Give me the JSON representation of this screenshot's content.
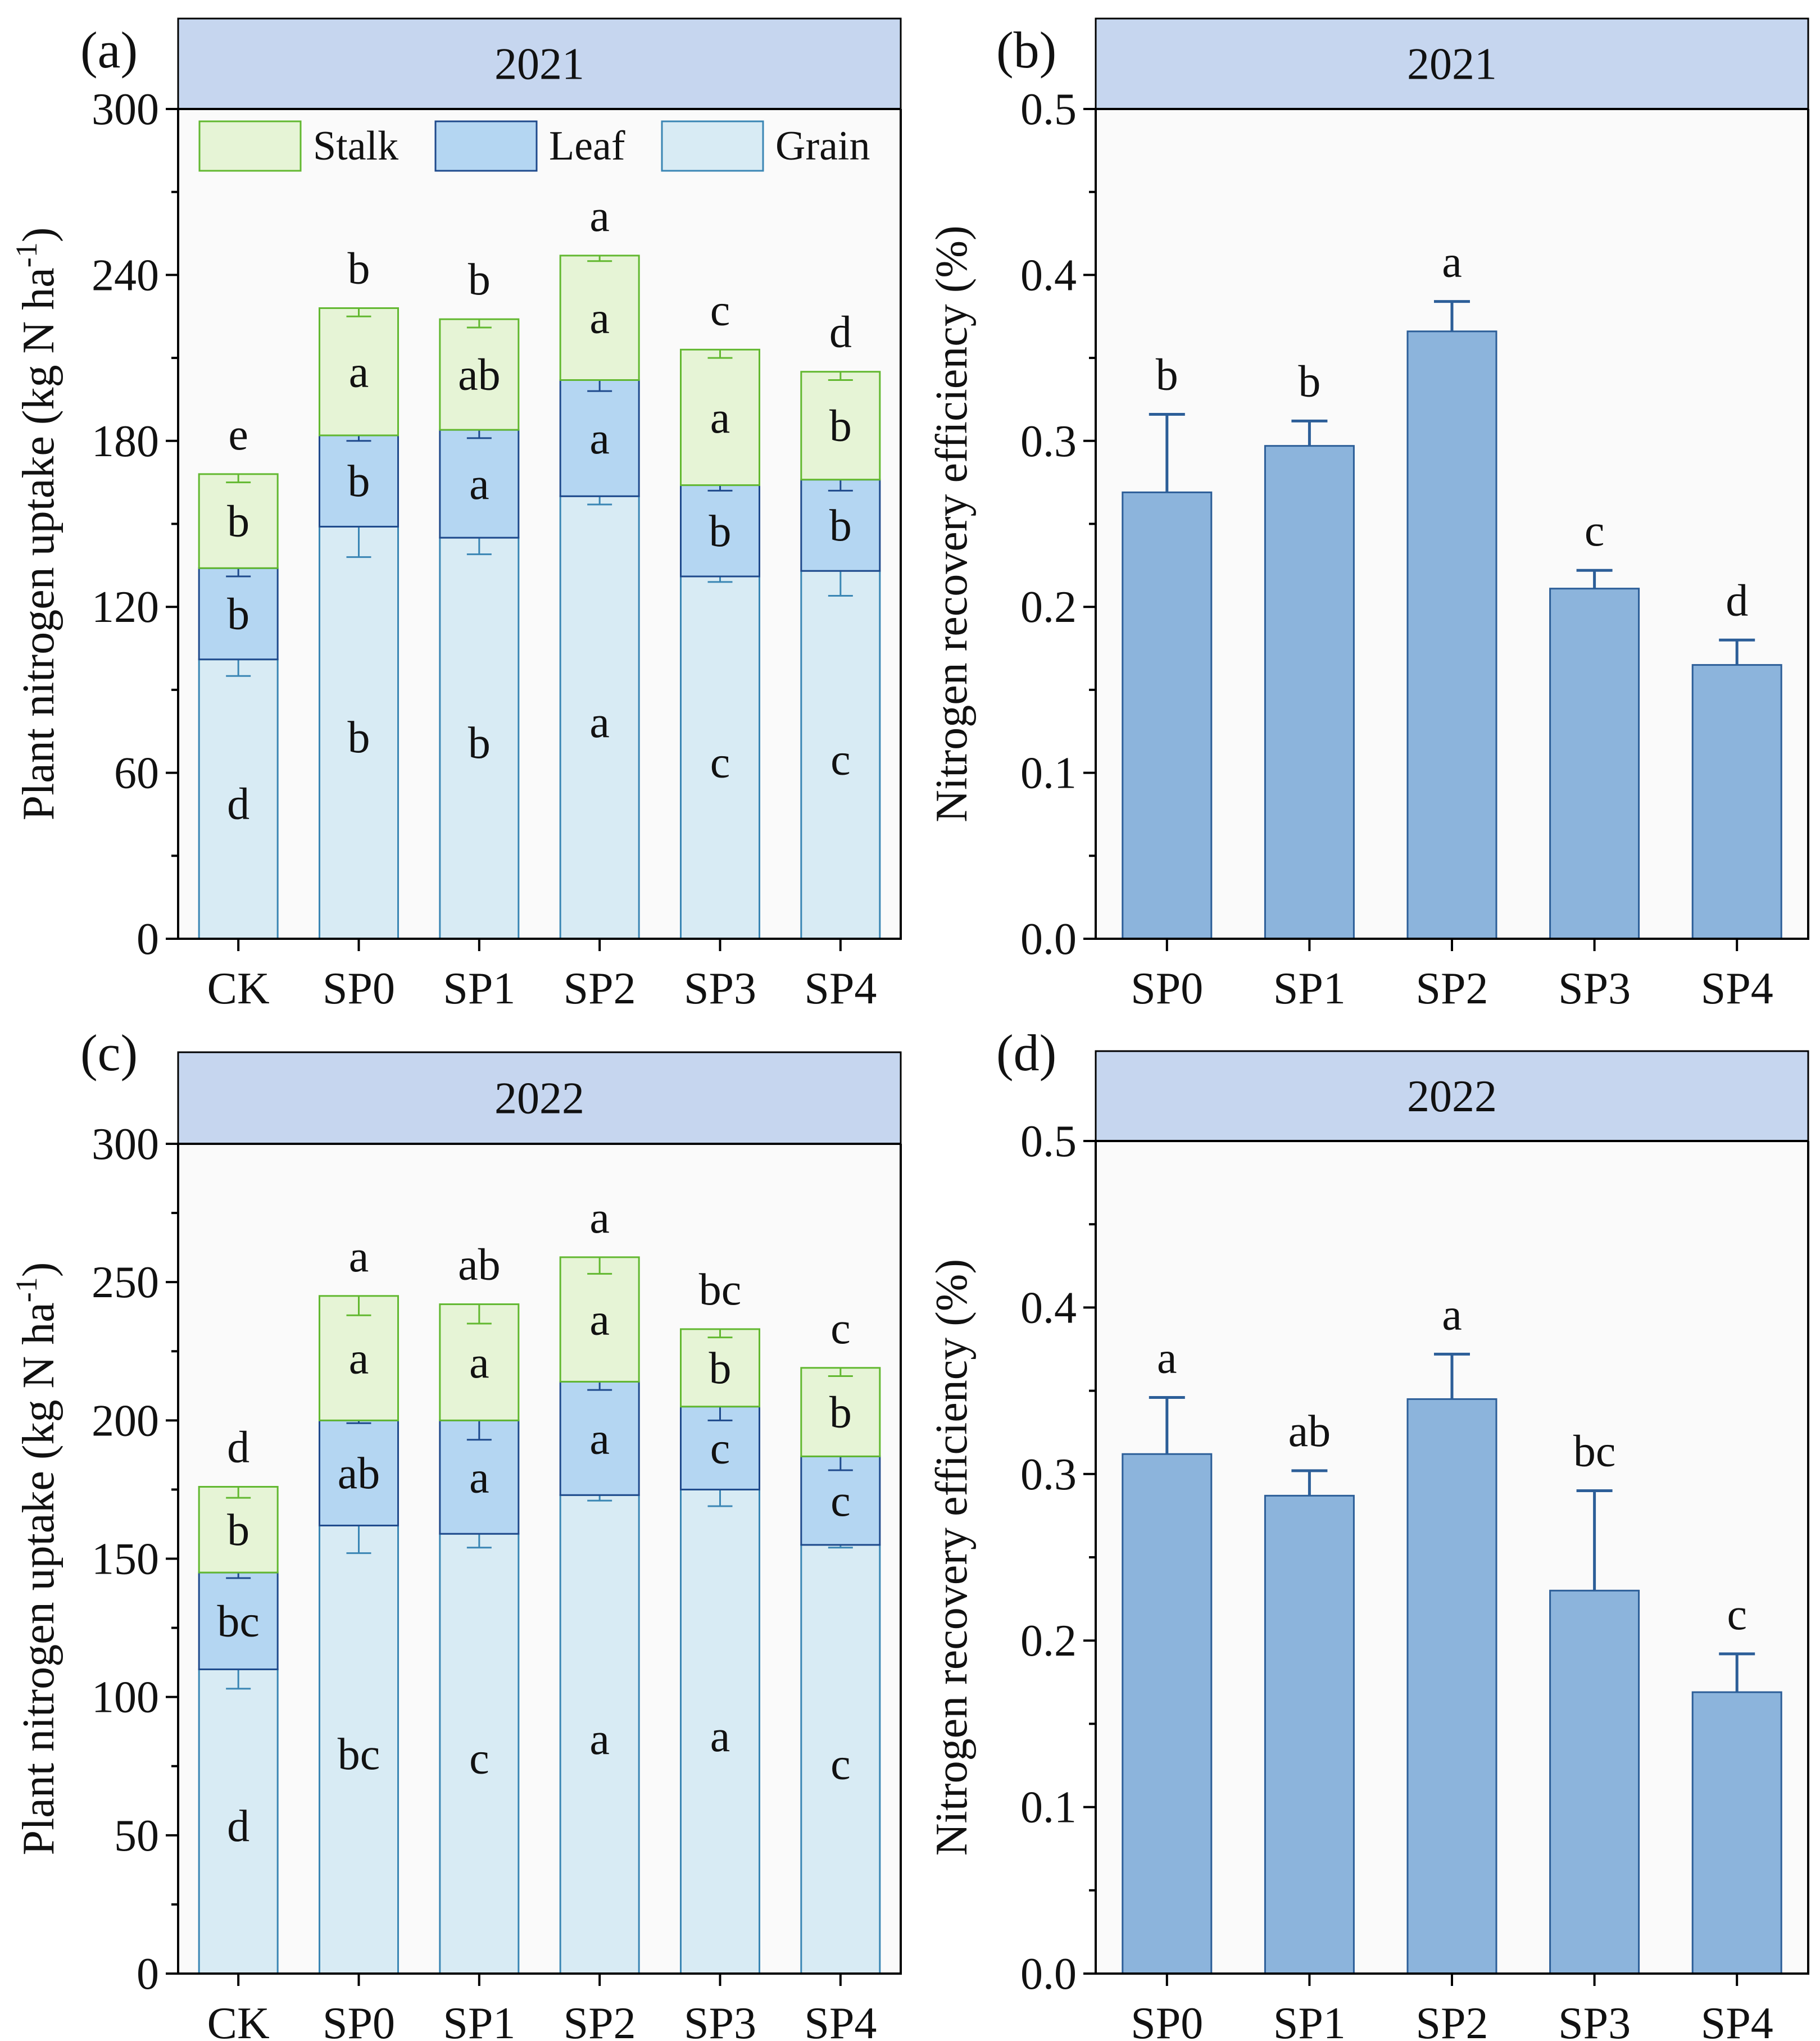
{
  "colors": {
    "strip": "#c6d6ef",
    "plot_bg": "#fafafa",
    "grain_fill": "#d8ebf4",
    "grain_edge": "#3a86b4",
    "leaf_fill": "#b4d6f2",
    "leaf_edge": "#1f4a8c",
    "stalk_fill": "#e6f4d6",
    "stalk_edge": "#62b830",
    "bar_fill": "#8cb4dc",
    "bar_edge": "#2c5e98"
  },
  "chart_data": [
    {
      "id": "a",
      "panel_label": "(a)",
      "type": "bar",
      "stacked": true,
      "strip": "2021",
      "ylabel": "Plant nitrogen uptake (kg N ha",
      "ylabel_sup": "-1",
      "ylabel_end": ")",
      "ylim": [
        0,
        300
      ],
      "yticks": [
        "0",
        "60",
        "120",
        "180",
        "240",
        "300"
      ],
      "categories": [
        "CK",
        "SP0",
        "SP1",
        "SP2",
        "SP3",
        "SP4"
      ],
      "legend": [
        "Stalk",
        "Leaf",
        "Grain"
      ],
      "series": [
        {
          "name": "Grain",
          "values": [
            101,
            149,
            145,
            160,
            131,
            133
          ],
          "err": [
            6,
            11,
            6,
            3,
            2,
            9
          ],
          "sig": [
            "d",
            "b",
            "b",
            "a",
            "c",
            "c"
          ]
        },
        {
          "name": "Leaf",
          "values": [
            33,
            33,
            39,
            42,
            33,
            33
          ],
          "err": [
            3,
            2,
            3,
            4,
            2,
            4
          ],
          "sig": [
            "b",
            "b",
            "a",
            "a",
            "b",
            "b"
          ]
        },
        {
          "name": "Stalk",
          "values": [
            34,
            46,
            40,
            45,
            49,
            39
          ],
          "err": [
            3,
            3,
            3,
            2,
            3,
            3
          ],
          "sig": [
            "b",
            "a",
            "ab",
            "a",
            "a",
            "b"
          ]
        }
      ],
      "total_sig": [
        "e",
        "b",
        "b",
        "a",
        "c",
        "d"
      ]
    },
    {
      "id": "b",
      "panel_label": "(b)",
      "type": "bar",
      "strip": "2021",
      "ylabel": "Nitrogen recovery efficiency (%)",
      "ylim": [
        0,
        0.5
      ],
      "yticks": [
        "0.0",
        "0.1",
        "0.2",
        "0.3",
        "0.4",
        "0.5"
      ],
      "categories": [
        "SP0",
        "SP1",
        "SP2",
        "SP3",
        "SP4"
      ],
      "values": [
        0.269,
        0.297,
        0.366,
        0.211,
        0.165
      ],
      "err": [
        0.047,
        0.015,
        0.018,
        0.011,
        0.015
      ],
      "sig": [
        "b",
        "b",
        "a",
        "c",
        "d"
      ]
    },
    {
      "id": "c",
      "panel_label": "(c)",
      "type": "bar",
      "stacked": true,
      "strip": "2022",
      "ylabel": "Plant nitrogen uptake (kg N ha",
      "ylabel_sup": "-1",
      "ylabel_end": ")",
      "ylim": [
        0,
        300
      ],
      "yticks": [
        "0",
        "50",
        "100",
        "150",
        "200",
        "250",
        "300"
      ],
      "categories": [
        "CK",
        "SP0",
        "SP1",
        "SP2",
        "SP3",
        "SP4"
      ],
      "series": [
        {
          "name": "Grain",
          "values": [
            110,
            162,
            159,
            173,
            175,
            155
          ],
          "err": [
            7,
            10,
            5,
            2,
            6,
            1
          ],
          "sig": [
            "d",
            "bc",
            "c",
            "a",
            "a",
            "c"
          ]
        },
        {
          "name": "Leaf",
          "values": [
            35,
            38,
            41,
            41,
            30,
            32
          ],
          "err": [
            2,
            1,
            7,
            3,
            5,
            5
          ],
          "sig": [
            "bc",
            "ab",
            "a",
            "a",
            "c",
            "c"
          ]
        },
        {
          "name": "Stalk",
          "values": [
            31,
            45,
            42,
            45,
            28,
            32
          ],
          "err": [
            4,
            7,
            7,
            6,
            3,
            3
          ],
          "sig": [
            "b",
            "a",
            "a",
            "a",
            "b",
            "b"
          ]
        }
      ],
      "total_sig": [
        "d",
        "a",
        "ab",
        "a",
        "bc",
        "c"
      ]
    },
    {
      "id": "d",
      "panel_label": "(d)",
      "type": "bar",
      "strip": "2022",
      "ylabel": "Nitrogen recovery efficiency (%)",
      "ylim": [
        0,
        0.5
      ],
      "yticks": [
        "0.0",
        "0.1",
        "0.2",
        "0.3",
        "0.4",
        "0.5"
      ],
      "categories": [
        "SP0",
        "SP1",
        "SP2",
        "SP3",
        "SP4"
      ],
      "values": [
        0.312,
        0.287,
        0.345,
        0.23,
        0.169
      ],
      "err": [
        0.034,
        0.015,
        0.027,
        0.06,
        0.023
      ],
      "sig": [
        "a",
        "ab",
        "a",
        "bc",
        "c"
      ]
    }
  ]
}
